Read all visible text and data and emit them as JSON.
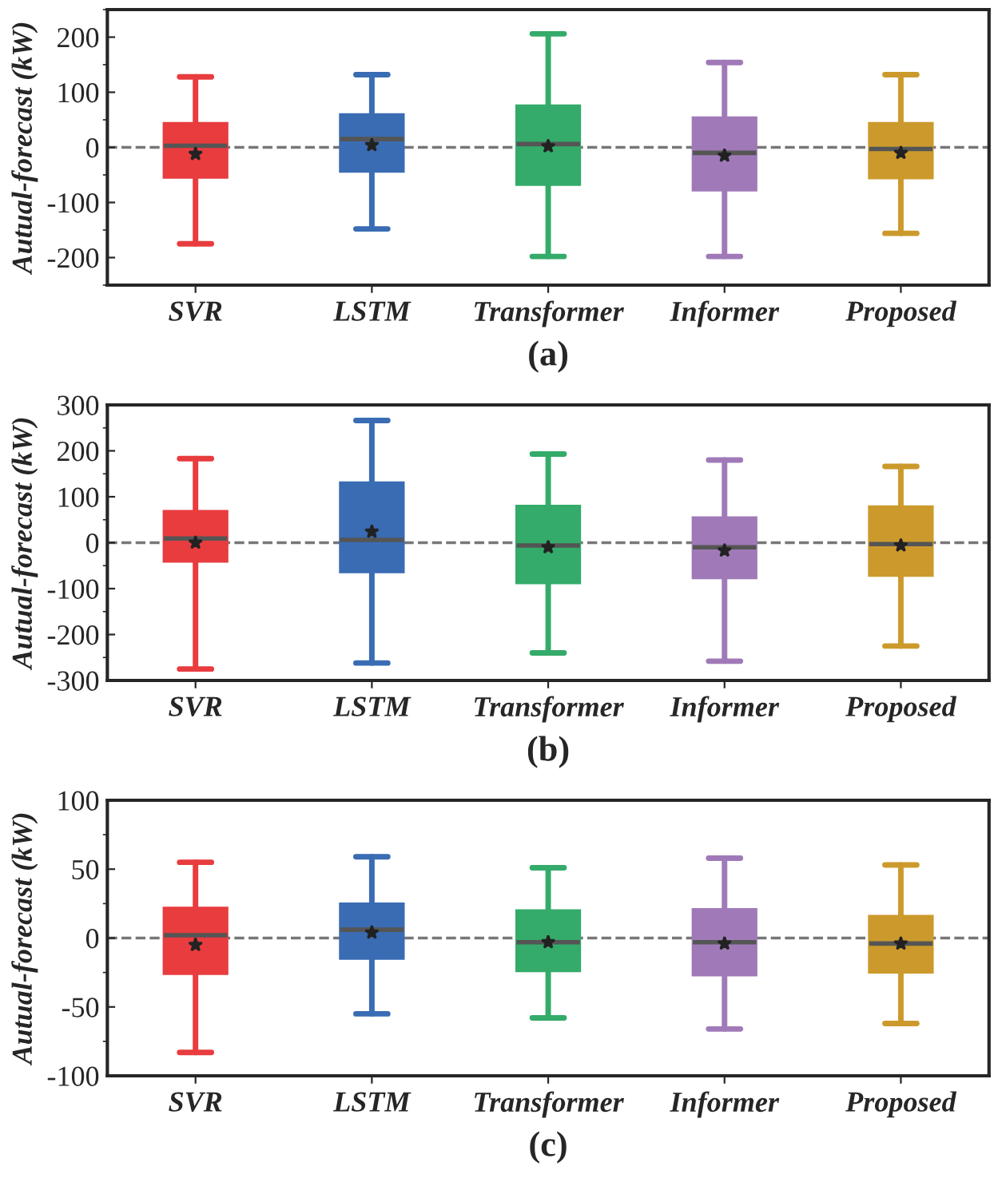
{
  "chart_data": [
    {
      "type": "box",
      "title": "(a)",
      "ylabel": "Autual-forecast (kW)",
      "categories": [
        "SVR",
        "LSTM",
        "Transformer",
        "Informer",
        "Proposed"
      ],
      "colors": [
        "#e83c3f",
        "#3a6cb4",
        "#34ab6a",
        "#a07ab8",
        "#cc9a2c"
      ],
      "boxes": [
        {
          "low": -175,
          "q1": -55,
          "median": 3,
          "q3": 44,
          "high": 128,
          "mean": -12
        },
        {
          "low": -148,
          "q1": -44,
          "median": 15,
          "q3": 60,
          "high": 132,
          "mean": 4
        },
        {
          "low": -198,
          "q1": -68,
          "median": 6,
          "q3": 76,
          "high": 206,
          "mean": 2
        },
        {
          "low": -198,
          "q1": -78,
          "median": -10,
          "q3": 54,
          "high": 154,
          "mean": -15
        },
        {
          "low": -156,
          "q1": -56,
          "median": -3,
          "q3": 44,
          "high": 132,
          "mean": -10
        }
      ],
      "ylim": [
        -250,
        250
      ],
      "yticks": [
        -200,
        -100,
        0,
        100,
        200
      ],
      "ref_lines": [
        {
          "axis": "y",
          "value": 0,
          "color": "#777777",
          "line_style": "dashed"
        }
      ],
      "grid": false,
      "legend": false
    },
    {
      "type": "box",
      "title": "(b)",
      "ylabel": "Autual-forecast (kW)",
      "categories": [
        "SVR",
        "LSTM",
        "Transformer",
        "Informer",
        "Proposed"
      ],
      "colors": [
        "#e83c3f",
        "#3a6cb4",
        "#34ab6a",
        "#a07ab8",
        "#cc9a2c"
      ],
      "boxes": [
        {
          "low": -275,
          "q1": -41,
          "median": 9,
          "q3": 69,
          "high": 183,
          "mean": 0
        },
        {
          "low": -262,
          "q1": -64,
          "median": 6,
          "q3": 131,
          "high": 266,
          "mean": 24
        },
        {
          "low": -240,
          "q1": -88,
          "median": -6,
          "q3": 80,
          "high": 193,
          "mean": -10
        },
        {
          "low": -258,
          "q1": -77,
          "median": -10,
          "q3": 55,
          "high": 180,
          "mean": -17
        },
        {
          "low": -225,
          "q1": -72,
          "median": -3,
          "q3": 79,
          "high": 166,
          "mean": -6
        }
      ],
      "ylim": [
        -300,
        300
      ],
      "yticks": [
        -300,
        -200,
        -100,
        0,
        100,
        200,
        300
      ],
      "ref_lines": [
        {
          "axis": "y",
          "value": 0,
          "color": "#777777",
          "line_style": "dashed"
        }
      ],
      "grid": false,
      "legend": false
    },
    {
      "type": "box",
      "title": "(c)",
      "ylabel": "Autual-forecast (kW)",
      "categories": [
        "SVR",
        "LSTM",
        "Transformer",
        "Informer",
        "Proposed"
      ],
      "colors": [
        "#e83c3f",
        "#3a6cb4",
        "#34ab6a",
        "#a07ab8",
        "#cc9a2c"
      ],
      "boxes": [
        {
          "low": -83,
          "q1": -26,
          "median": 2,
          "q3": 22,
          "high": 55,
          "mean": -5
        },
        {
          "low": -55,
          "q1": -15,
          "median": 6,
          "q3": 25,
          "high": 59,
          "mean": 4
        },
        {
          "low": -58,
          "q1": -24,
          "median": -3,
          "q3": 20,
          "high": 51,
          "mean": -3
        },
        {
          "low": -66,
          "q1": -27,
          "median": -3,
          "q3": 21,
          "high": 58,
          "mean": -4
        },
        {
          "low": -62,
          "q1": -25,
          "median": -4,
          "q3": 16,
          "high": 53,
          "mean": -4
        }
      ],
      "ylim": [
        -100,
        100
      ],
      "yticks": [
        -100,
        -50,
        0,
        50,
        100
      ],
      "ref_lines": [
        {
          "axis": "y",
          "value": 0,
          "color": "#777777",
          "line_style": "dashed"
        }
      ],
      "grid": false,
      "legend": false
    }
  ]
}
